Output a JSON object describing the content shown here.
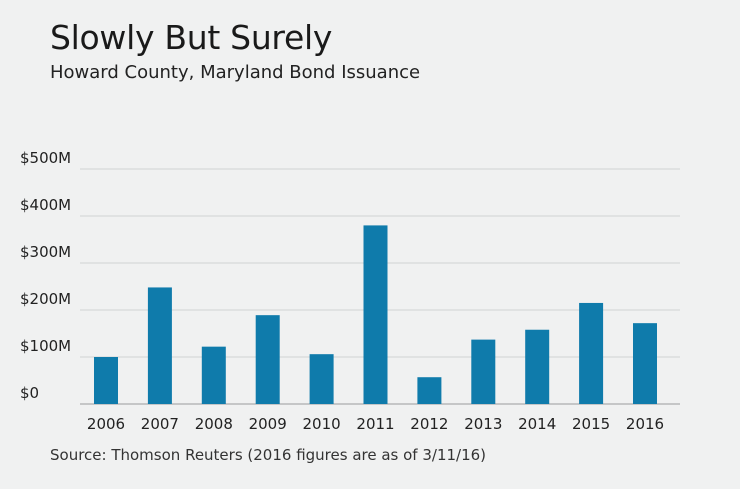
{
  "title": "Slowly But Surely",
  "subtitle": "Howard County, Maryland Bond Issuance",
  "source": "Source: Thomson Reuters (2016 figures are as of 3/11/16)",
  "colors": {
    "bar": "#0f7bab",
    "grid": "#cfd2d3",
    "axis": "#9a9c9d",
    "background": "#f0f1f1"
  },
  "chart_data": {
    "type": "bar",
    "categories": [
      "2006",
      "2007",
      "2008",
      "2009",
      "2010",
      "2011",
      "2012",
      "2013",
      "2014",
      "2015",
      "2016"
    ],
    "values": [
      100,
      248,
      122,
      189,
      106,
      380,
      57,
      137,
      158,
      215,
      172
    ],
    "yticks": [
      "$0",
      "$100M",
      "$200M",
      "$300M",
      "$400M",
      "$500M"
    ],
    "ytick_values": [
      0,
      100,
      200,
      300,
      400,
      500
    ],
    "ylim": [
      0,
      500
    ],
    "unit": "$M",
    "grid": true
  }
}
